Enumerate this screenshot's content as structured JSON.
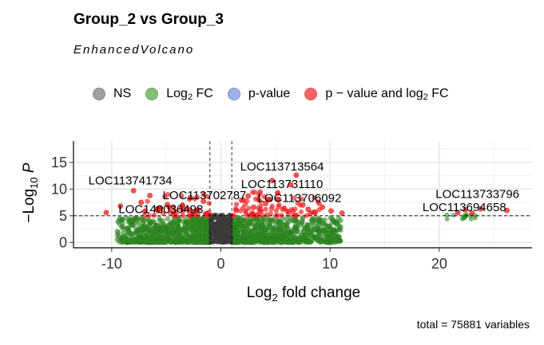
{
  "title": "Group_2 vs Group_3",
  "subtitle": "EnhancedVolcano",
  "caption": "total = 75881 variables",
  "legend": [
    {
      "key": "ns",
      "label_html": "NS",
      "color": "#808080"
    },
    {
      "key": "fc",
      "label_html": "Log<sub>2</sub> FC",
      "color": "#5aaa46"
    },
    {
      "key": "p",
      "label_html": "p-value",
      "color": "#7b98e0"
    },
    {
      "key": "pfc",
      "label_html": "p &#8722; value and log<sub>2</sub> FC",
      "color": "#ff3030"
    }
  ],
  "colors": {
    "ns": "#3a3a3a",
    "fc": "#2e8b22",
    "p": "#6a8fd8",
    "pfc": "#ff1a1a"
  },
  "chart_data": {
    "type": "scatter",
    "xlabel": "Log2 fold change",
    "ylabel": "-Log10 P",
    "xlim": [
      -13.5,
      28.5
    ],
    "ylim": [
      -1,
      19
    ],
    "x_ticks": [
      -10,
      0,
      10,
      20
    ],
    "y_ticks": [
      0,
      5,
      10,
      15
    ],
    "fc_cutoff": [
      -1,
      1
    ],
    "p_cutoff_log10": 5,
    "grid": true,
    "legend_position": "top",
    "labels": [
      {
        "text": "LOC113713564",
        "x": 5.6,
        "y": 13.5
      },
      {
        "text": "LOC113741734",
        "x": -8.3,
        "y": 10.9
      },
      {
        "text": "LOC113731110",
        "x": 5.6,
        "y": 10.2
      },
      {
        "text": "LOC113702787",
        "x": -1.5,
        "y": 8.1
      },
      {
        "text": "LOC113706092",
        "x": 7.2,
        "y": 7.6
      },
      {
        "text": "LOC113733796",
        "x": 23.5,
        "y": 8.3
      },
      {
        "text": "LOC113694658",
        "x": 22.3,
        "y": 5.9
      },
      {
        "text": "LOC140036498",
        "x": -5.5,
        "y": 5.5
      }
    ],
    "highlight_points": [
      {
        "x": -10.5,
        "y": 5.6
      },
      {
        "x": -9.2,
        "y": 6.8
      },
      {
        "x": -8.0,
        "y": 9.7
      },
      {
        "x": -7.3,
        "y": 7.5
      },
      {
        "x": -6.5,
        "y": 8.8
      },
      {
        "x": -5.8,
        "y": 6.3
      },
      {
        "x": -4.9,
        "y": 7.1
      },
      {
        "x": -4.2,
        "y": 5.8
      },
      {
        "x": -3.5,
        "y": 6.9
      },
      {
        "x": -2.8,
        "y": 8.4
      },
      {
        "x": -2.1,
        "y": 6.1
      },
      {
        "x": -1.6,
        "y": 7.7
      },
      {
        "x": -1.3,
        "y": 5.4
      },
      {
        "x": 1.4,
        "y": 6.0
      },
      {
        "x": 1.9,
        "y": 7.9
      },
      {
        "x": 2.5,
        "y": 8.7
      },
      {
        "x": 3.0,
        "y": 6.6
      },
      {
        "x": 3.6,
        "y": 9.4
      },
      {
        "x": 4.1,
        "y": 7.3
      },
      {
        "x": 4.7,
        "y": 11.6
      },
      {
        "x": 5.2,
        "y": 8.1
      },
      {
        "x": 5.8,
        "y": 6.4
      },
      {
        "x": 6.4,
        "y": 10.8
      },
      {
        "x": 6.9,
        "y": 12.6
      },
      {
        "x": 7.5,
        "y": 7.0
      },
      {
        "x": 8.0,
        "y": 6.2
      },
      {
        "x": 8.6,
        "y": 5.7
      },
      {
        "x": 9.3,
        "y": 6.6
      },
      {
        "x": 10.1,
        "y": 5.9
      },
      {
        "x": 11.1,
        "y": 5.5
      },
      {
        "x": 21.7,
        "y": 5.6
      },
      {
        "x": 22.4,
        "y": 6.1
      },
      {
        "x": 23.0,
        "y": 5.5
      },
      {
        "x": 23.8,
        "y": 6.3
      },
      {
        "x": 26.2,
        "y": 6.0
      }
    ]
  }
}
